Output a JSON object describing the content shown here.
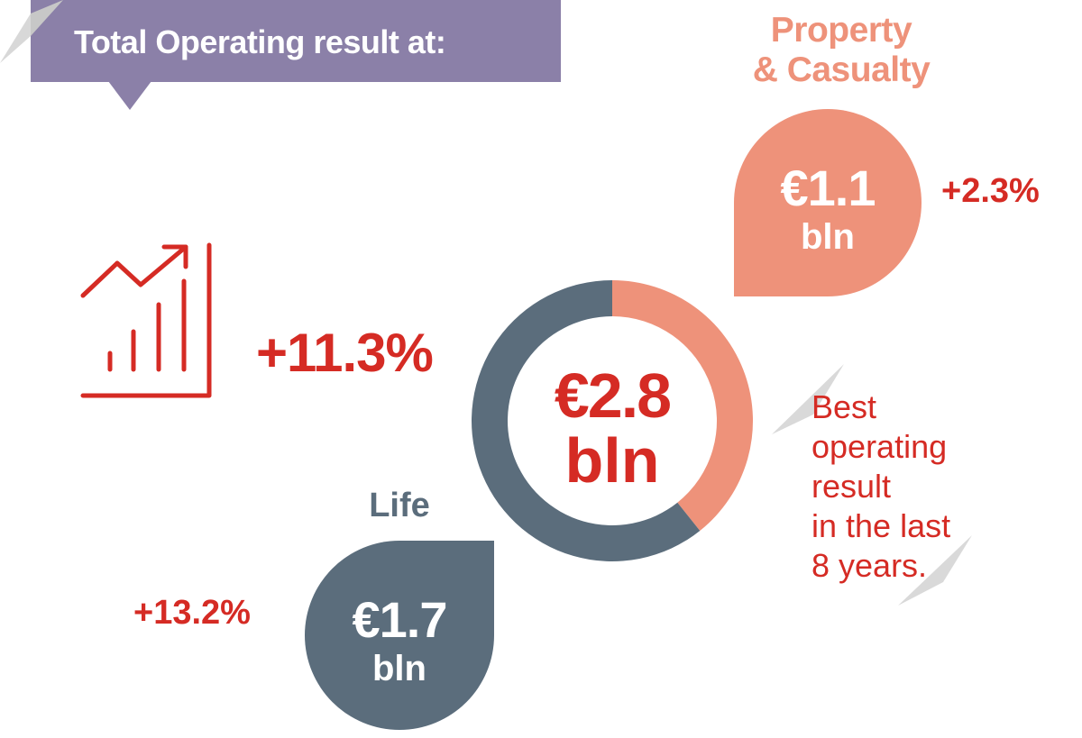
{
  "header": {
    "title": "Total Operating result at:"
  },
  "total": {
    "amount": "€2.8",
    "unit": "bln",
    "change": "+11.3%"
  },
  "segments": {
    "property_casualty": {
      "label_line1": "Property",
      "label_line2": "& Casualty",
      "amount": "€1.1",
      "unit": "bln",
      "change": "+2.3%"
    },
    "life": {
      "label": "Life",
      "amount": "€1.7",
      "unit": "bln",
      "change": "+13.2%"
    }
  },
  "note": "Best\noperating\nresult\nin the last\n8 years.",
  "colors": {
    "property_casualty": "#ee927a",
    "life": "#5b6d7c",
    "accent": "#d52b24",
    "header": "#8b80a8"
  },
  "icons": {
    "growth": "bar-chart-growth-arrow-icon"
  },
  "chart_data": {
    "type": "pie",
    "variant": "donut",
    "total": 2.8,
    "unit": "€ bln",
    "slices": [
      {
        "name": "Property & Casualty",
        "value": 1.1
      },
      {
        "name": "Life",
        "value": 1.7
      }
    ]
  }
}
